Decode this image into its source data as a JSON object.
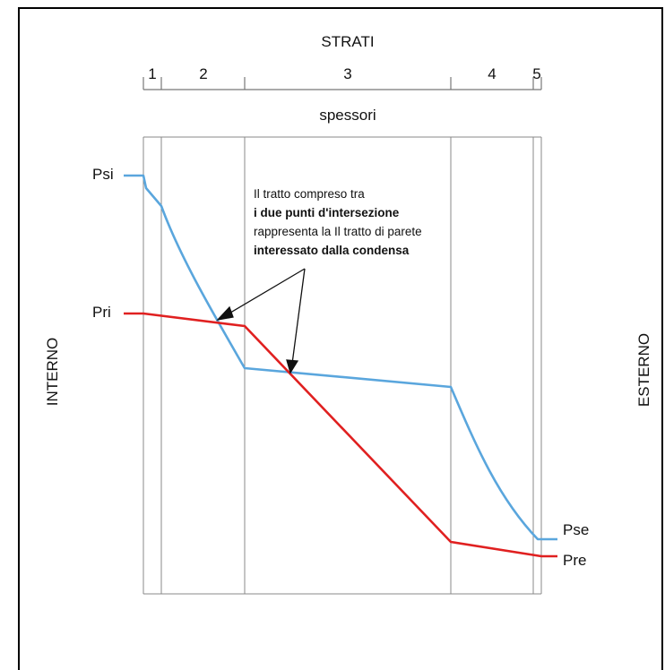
{
  "header": {
    "strati_label": "STRATI",
    "spessori_label": "spessori"
  },
  "layers": [
    "1",
    "2",
    "3",
    "4",
    "5"
  ],
  "side_labels": {
    "left": "INTERNO",
    "right": "ESTERNO"
  },
  "curves": [
    {
      "name": "Psi",
      "color": "#5aa6dd"
    },
    {
      "name": "Pri",
      "color": "#e02020"
    },
    {
      "name": "Pse",
      "color": "#5aa6dd"
    },
    {
      "name": "Pre",
      "color": "#e02020"
    }
  ],
  "annotation": {
    "lines": [
      "Il tratto compreso tra",
      "i due punti d'intersezione",
      "rappresenta la Il tratto di parete",
      "interessato dalla  condensa"
    ]
  }
}
